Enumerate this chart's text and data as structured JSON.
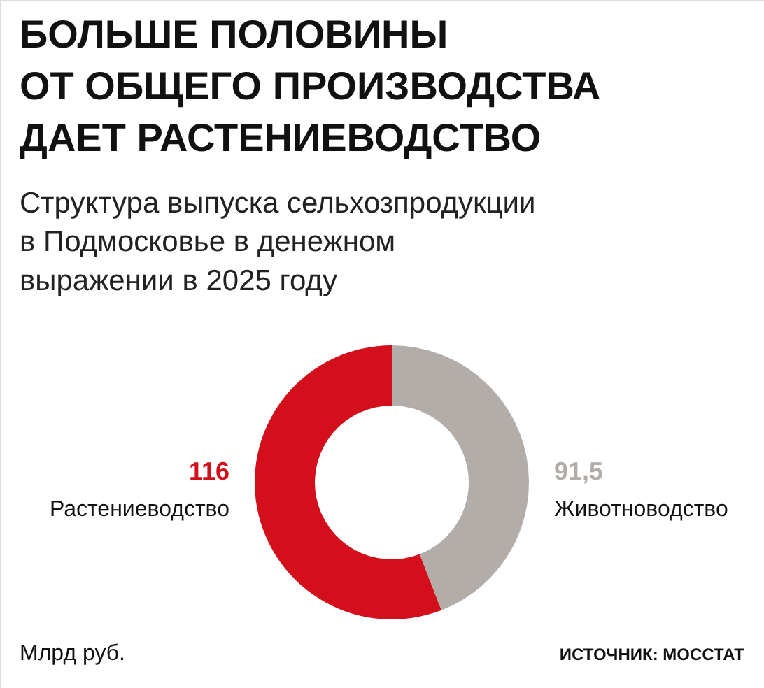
{
  "chart_data": {
    "type": "donut",
    "title": "БОЛЬШЕ ПОЛОВИНЫ\nОТ ОБЩЕГО ПРОИЗВОДСТВА\nДАЕТ РАСТЕНИЕВОДСТВО",
    "subtitle": "Структура выпуска сельхозпродукции\nв Подмосковье в денежном\nвыражении в 2025 году",
    "categories": [
      "Растениеводство",
      "Животноводство"
    ],
    "values": [
      116,
      91.5
    ],
    "colors": [
      "#d20f1b",
      "#b3ada9"
    ],
    "value_labels": [
      "116",
      "91,5"
    ],
    "annotations": [
      "Млрд руб.",
      "ИСТОЧНИК: МОССТАТ"
    ]
  }
}
